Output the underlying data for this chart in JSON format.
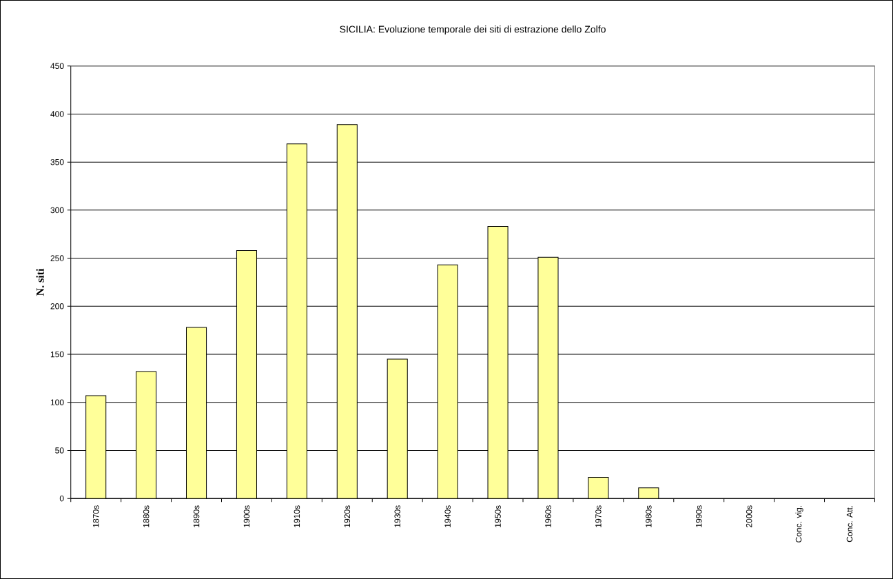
{
  "chart_data": {
    "type": "bar",
    "title": "SICILIA: Evoluzione temporale dei siti di estrazione dello Zolfo",
    "ylabel": "N. siti",
    "categories": [
      "1870s",
      "1880s",
      "1890s",
      "1900s",
      "1910s",
      "1920s",
      "1930s",
      "1940s",
      "1950s",
      "1960s",
      "1970s",
      "1980s",
      "1990s",
      "2000s",
      "Conc. vig.",
      "Conc. Att."
    ],
    "values": [
      107,
      132,
      178,
      258,
      369,
      389,
      145,
      243,
      283,
      251,
      22,
      11,
      0,
      0,
      0,
      0
    ],
    "color": "#ffff99",
    "ylim": [
      0,
      450
    ],
    "yticks": [
      0,
      50,
      100,
      150,
      200,
      250,
      300,
      350,
      400,
      450
    ],
    "grid": "y"
  }
}
